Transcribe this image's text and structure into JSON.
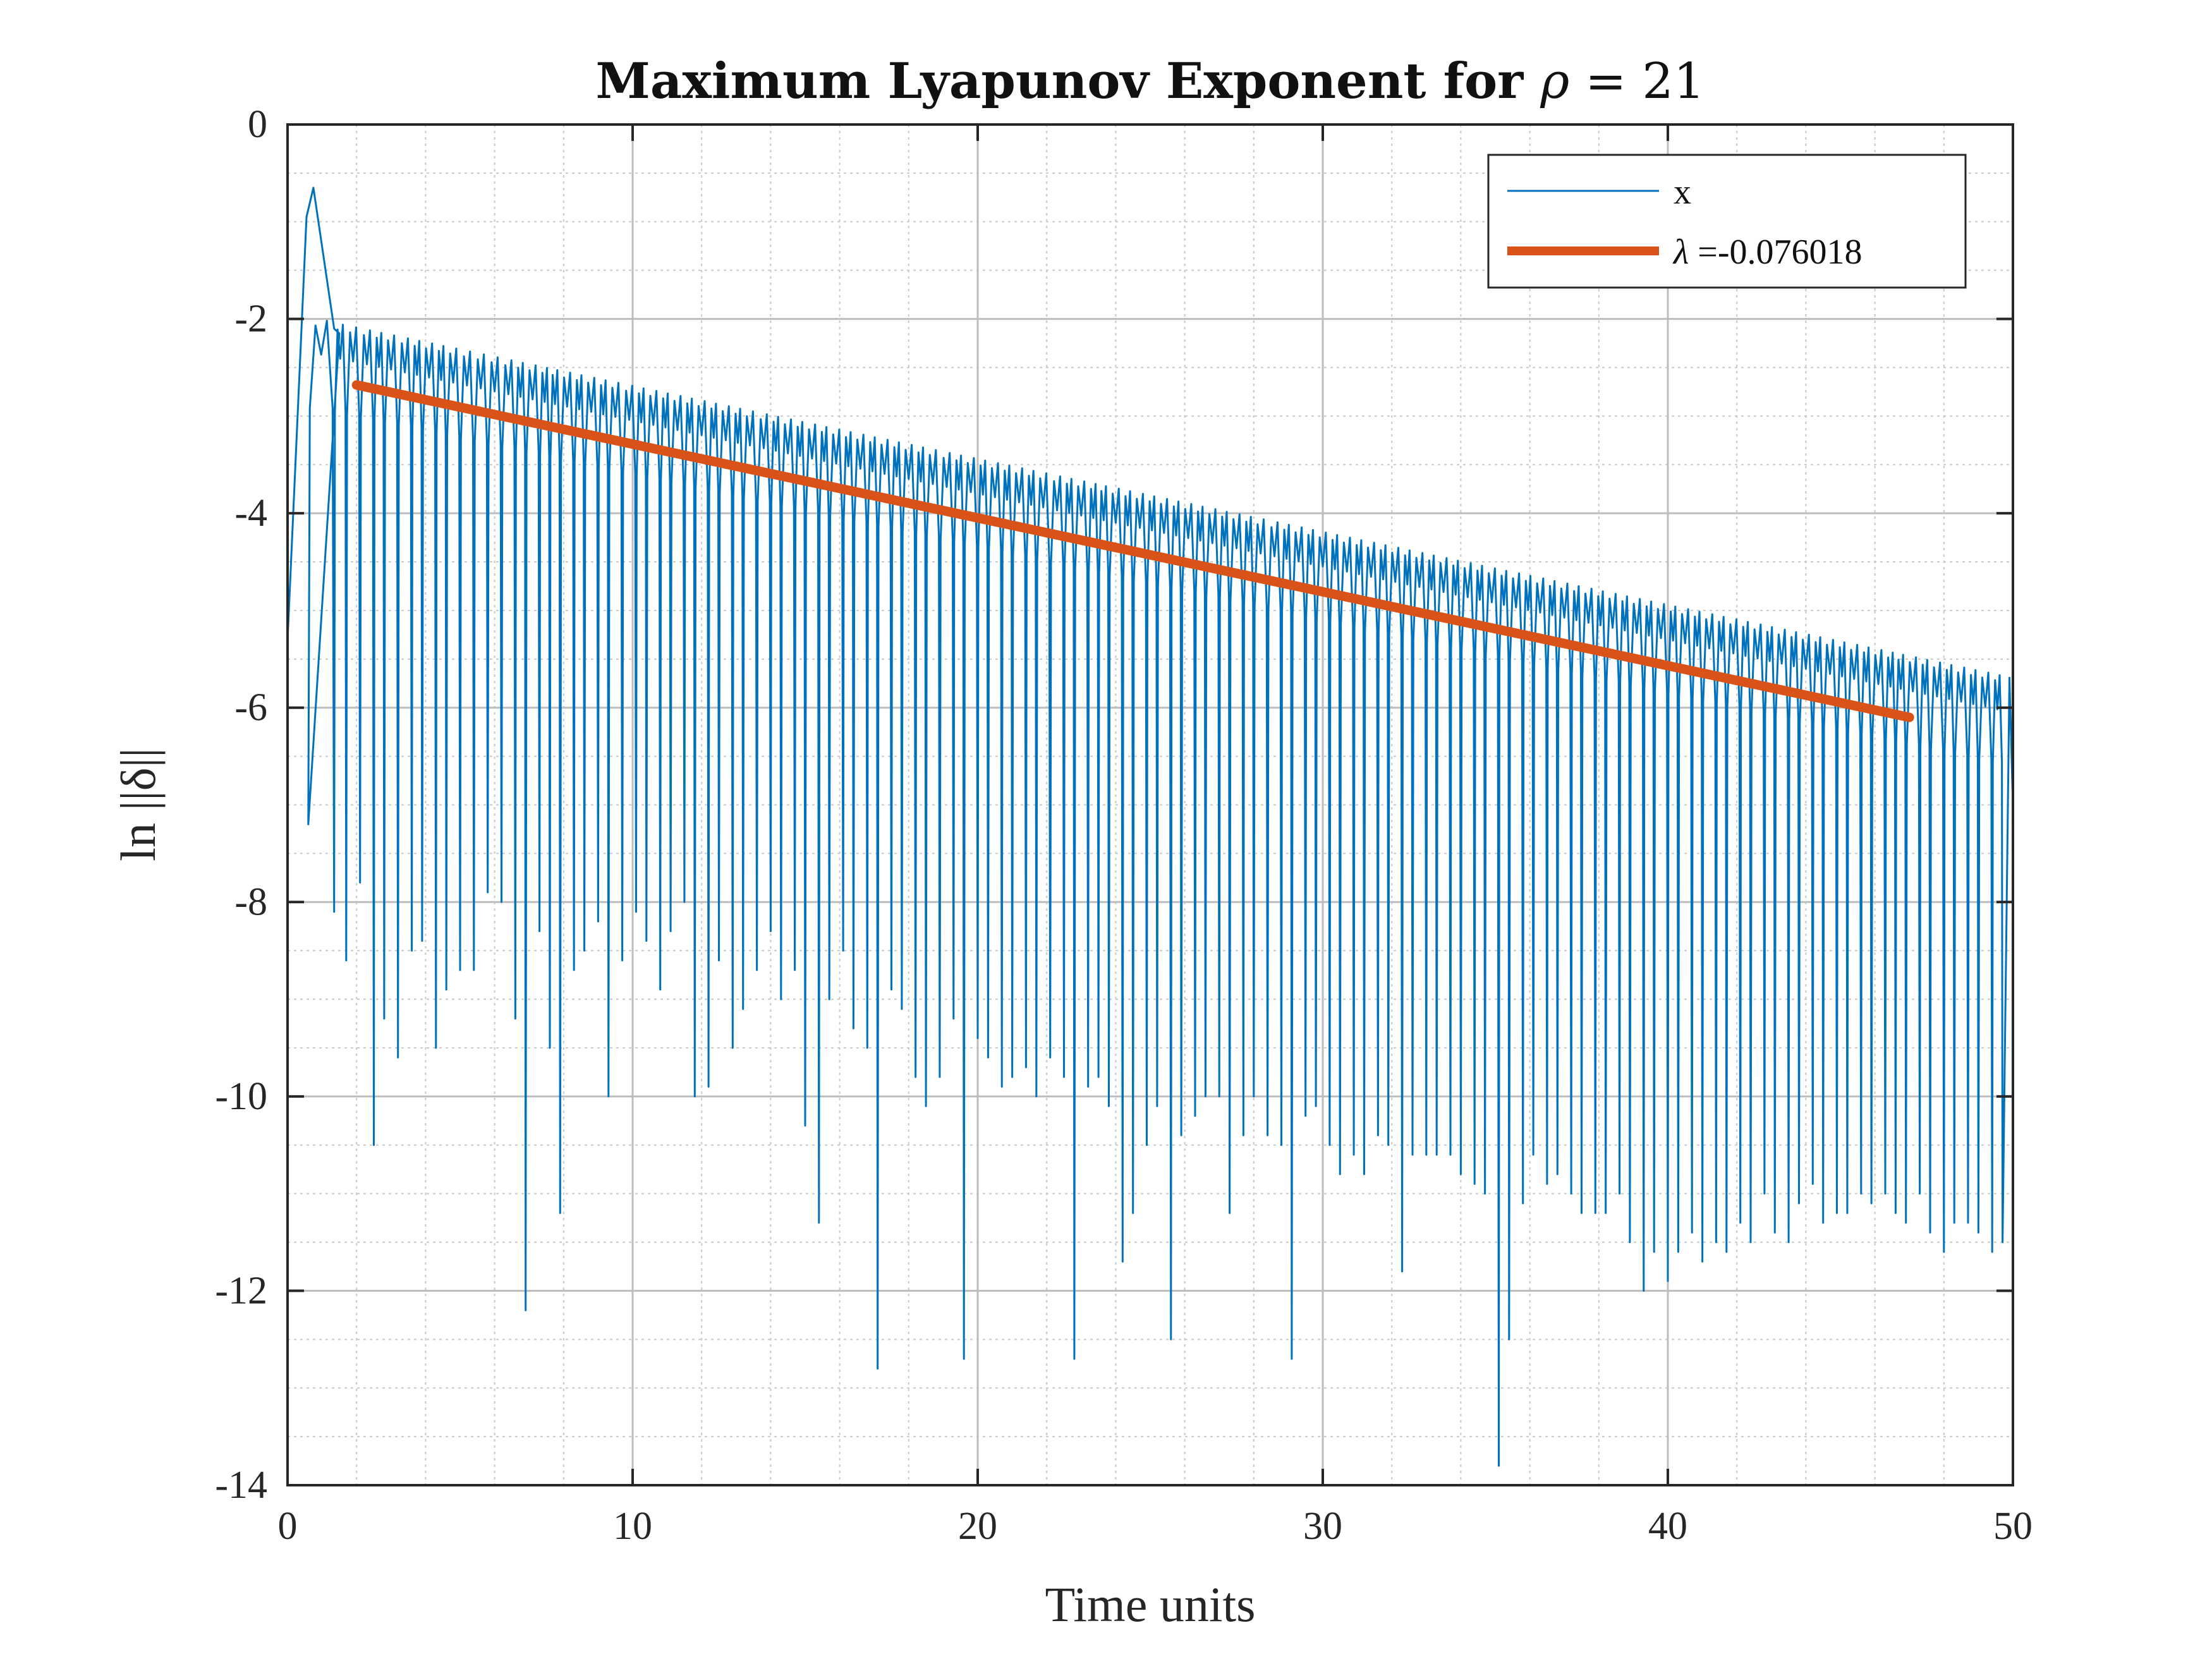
{
  "chart_data": {
    "type": "line",
    "title": "Maximum Lyapunov Exponent for ρ = 21",
    "title_main": "Maximum Lyapunov Exponent for ",
    "title_symbol": "ρ",
    "title_value": " = 21",
    "xlabel": "Time units",
    "ylabel": "ln ||δ||",
    "xlim": [
      0,
      50
    ],
    "ylim": [
      -14,
      0
    ],
    "xticks": [
      0,
      10,
      20,
      30,
      40,
      50
    ],
    "xtick_labels": [
      "0",
      "10",
      "20",
      "30",
      "40",
      "50"
    ],
    "yticks": [
      0,
      -2,
      -4,
      -6,
      -8,
      -10,
      -12,
      -14
    ],
    "ytick_labels": [
      "0",
      "-2",
      "-4",
      "-6",
      "-8",
      "-10",
      "-12",
      "-14"
    ],
    "grid": true,
    "minor_grid": true,
    "legend_position": "top-right",
    "series": [
      {
        "name": "x",
        "color": "#0072BD",
        "style": "oscillating",
        "start_value": -5.3,
        "transient_peaks": [
          [
            0.55,
            -0.95
          ],
          [
            0.75,
            -0.65
          ],
          [
            1.35,
            -2.1
          ],
          [
            1.5,
            -2.15
          ]
        ],
        "period": 0.37,
        "envelope_start": [
          1.4,
          -2.05
        ],
        "envelope_end": [
          50,
          -5.7
        ],
        "trough_points": [
          [
            0.6,
            -7.2
          ],
          [
            1.35,
            -8.1
          ],
          [
            1.7,
            -8.6
          ],
          [
            2.1,
            -7.8
          ],
          [
            2.5,
            -10.5
          ],
          [
            2.8,
            -9.2
          ],
          [
            3.2,
            -9.6
          ],
          [
            3.6,
            -8.5
          ],
          [
            3.9,
            -8.4
          ],
          [
            4.3,
            -9.5
          ],
          [
            4.6,
            -8.9
          ],
          [
            5.0,
            -8.7
          ],
          [
            5.4,
            -8.7
          ],
          [
            5.8,
            -7.9
          ],
          [
            6.2,
            -8.0
          ],
          [
            6.6,
            -9.2
          ],
          [
            6.9,
            -12.2
          ],
          [
            7.3,
            -8.3
          ],
          [
            7.6,
            -9.5
          ],
          [
            7.9,
            -11.2
          ],
          [
            8.3,
            -8.7
          ],
          [
            8.6,
            -8.5
          ],
          [
            9.0,
            -8.2
          ],
          [
            9.3,
            -10.0
          ],
          [
            9.7,
            -8.6
          ],
          [
            10.1,
            -8.1
          ],
          [
            10.4,
            -8.4
          ],
          [
            10.8,
            -8.9
          ],
          [
            11.1,
            -8.3
          ],
          [
            11.5,
            -8.0
          ],
          [
            11.8,
            -10.0
          ],
          [
            12.2,
            -9.9
          ],
          [
            12.5,
            -8.6
          ],
          [
            12.9,
            -9.5
          ],
          [
            13.2,
            -9.1
          ],
          [
            13.6,
            -8.7
          ],
          [
            14.0,
            -8.3
          ],
          [
            14.3,
            -9.0
          ],
          [
            14.7,
            -8.7
          ],
          [
            15.0,
            -10.3
          ],
          [
            15.4,
            -11.3
          ],
          [
            15.7,
            -9.0
          ],
          [
            16.1,
            -8.5
          ],
          [
            16.4,
            -9.3
          ],
          [
            16.8,
            -9.5
          ],
          [
            17.1,
            -12.8
          ],
          [
            17.5,
            -8.9
          ],
          [
            17.8,
            -9.1
          ],
          [
            18.2,
            -9.8
          ],
          [
            18.5,
            -10.1
          ],
          [
            18.9,
            -9.8
          ],
          [
            19.3,
            -9.2
          ],
          [
            19.6,
            -12.7
          ],
          [
            20.0,
            -9.4
          ],
          [
            20.3,
            -9.6
          ],
          [
            20.7,
            -9.9
          ],
          [
            21.0,
            -9.8
          ],
          [
            21.4,
            -9.7
          ],
          [
            21.7,
            -10.0
          ],
          [
            22.1,
            -9.6
          ],
          [
            22.5,
            -9.8
          ],
          [
            22.8,
            -12.7
          ],
          [
            23.2,
            -9.9
          ],
          [
            23.5,
            -9.8
          ],
          [
            23.8,
            -10.1
          ],
          [
            24.2,
            -11.7
          ],
          [
            24.5,
            -11.2
          ],
          [
            24.9,
            -10.5
          ],
          [
            25.2,
            -10.1
          ],
          [
            25.6,
            -12.5
          ],
          [
            25.9,
            -10.4
          ],
          [
            26.3,
            -10.2
          ],
          [
            26.6,
            -10.0
          ],
          [
            27.0,
            -10.0
          ],
          [
            27.3,
            -11.2
          ],
          [
            27.7,
            -10.4
          ],
          [
            28.0,
            -10.0
          ],
          [
            28.4,
            -10.4
          ],
          [
            28.8,
            -10.5
          ],
          [
            29.1,
            -12.7
          ],
          [
            29.5,
            -10.2
          ],
          [
            29.8,
            -10.1
          ],
          [
            30.2,
            -10.5
          ],
          [
            30.5,
            -10.8
          ],
          [
            30.9,
            -10.6
          ],
          [
            31.2,
            -10.8
          ],
          [
            31.6,
            -10.4
          ],
          [
            31.9,
            -10.5
          ],
          [
            32.3,
            -11.8
          ],
          [
            32.6,
            -10.6
          ],
          [
            33.0,
            -10.6
          ],
          [
            33.3,
            -10.6
          ],
          [
            33.7,
            -10.6
          ],
          [
            34.0,
            -10.8
          ],
          [
            34.4,
            -10.9
          ],
          [
            34.7,
            -11.0
          ],
          [
            35.1,
            -13.8
          ],
          [
            35.4,
            -12.5
          ],
          [
            35.8,
            -11.1
          ],
          [
            36.1,
            -10.6
          ],
          [
            36.5,
            -10.9
          ],
          [
            36.8,
            -10.8
          ],
          [
            37.2,
            -11.0
          ],
          [
            37.5,
            -11.2
          ],
          [
            37.9,
            -11.2
          ],
          [
            38.2,
            -11.2
          ],
          [
            38.6,
            -11.0
          ],
          [
            38.9,
            -11.5
          ],
          [
            39.3,
            -12.0
          ],
          [
            39.6,
            -11.6
          ],
          [
            40.0,
            -11.9
          ],
          [
            40.3,
            -11.6
          ],
          [
            40.7,
            -11.4
          ],
          [
            41.0,
            -11.7
          ],
          [
            41.4,
            -11.5
          ],
          [
            41.7,
            -11.6
          ],
          [
            42.1,
            -11.3
          ],
          [
            42.4,
            -11.5
          ],
          [
            42.8,
            -11.0
          ],
          [
            43.1,
            -11.4
          ],
          [
            43.5,
            -11.5
          ],
          [
            43.8,
            -11.1
          ],
          [
            44.2,
            -10.9
          ],
          [
            44.5,
            -11.3
          ],
          [
            44.9,
            -11.2
          ],
          [
            45.2,
            -11.2
          ],
          [
            45.6,
            -11.0
          ],
          [
            45.9,
            -11.1
          ],
          [
            46.3,
            -11.0
          ],
          [
            46.6,
            -11.2
          ],
          [
            46.9,
            -11.3
          ],
          [
            47.3,
            -11.0
          ],
          [
            47.6,
            -11.4
          ],
          [
            48.0,
            -11.6
          ],
          [
            48.3,
            -11.3
          ],
          [
            48.7,
            -11.3
          ],
          [
            49.0,
            -11.4
          ],
          [
            49.4,
            -11.6
          ],
          [
            49.7,
            -11.5
          ]
        ],
        "end_value": -7.0
      },
      {
        "name": "λ =-0.076018",
        "legend_symbol": "λ",
        "legend_value": " =-0.076018",
        "color": "#D95319",
        "style": "fit",
        "x": [
          2,
          47
        ],
        "y": [
          -2.68,
          -6.1
        ]
      }
    ]
  }
}
